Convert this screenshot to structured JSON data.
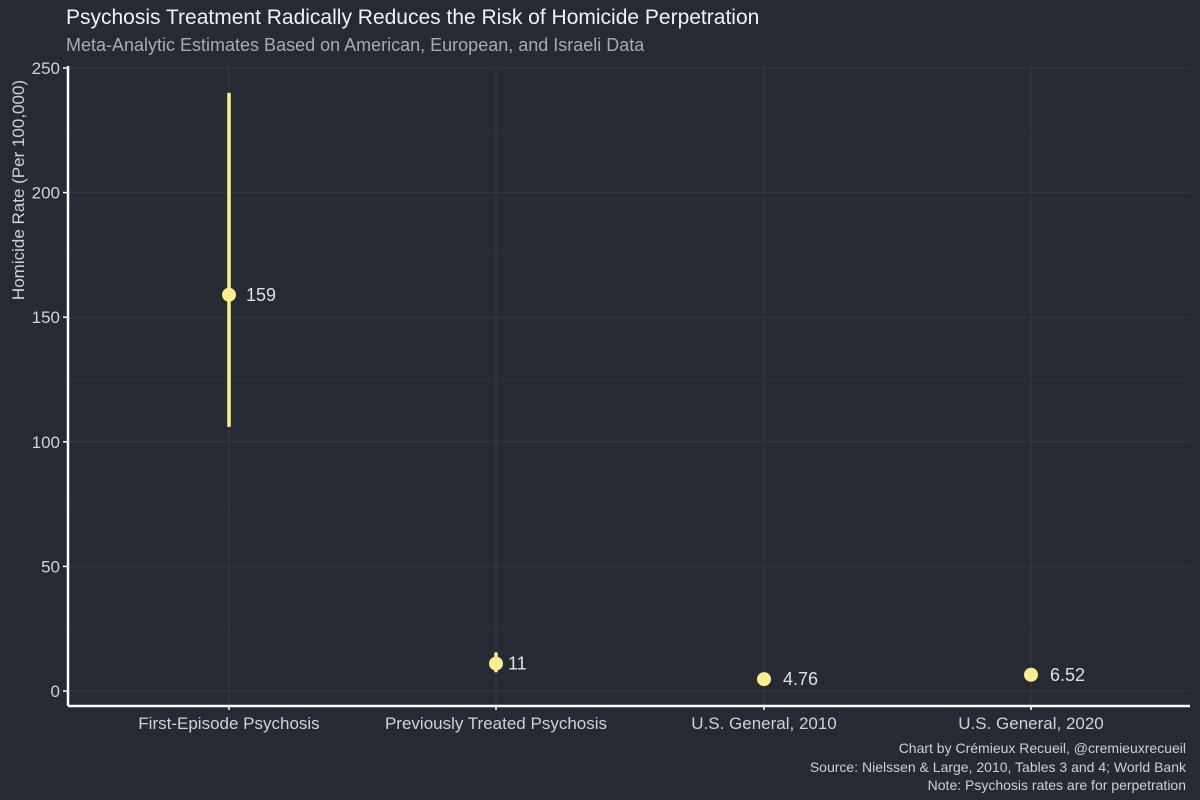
{
  "chart_data": {
    "type": "pointrange",
    "title": "Psychosis Treatment Radically Reduces the Risk of Homicide Perpetration",
    "subtitle": "Meta-Analytic Estimates Based on American, European, and Israeli Data",
    "xlabel": "",
    "ylabel": "Homicide Rate (Per 100,000)",
    "ylim": [
      0,
      250
    ],
    "yticks": [
      0,
      50,
      100,
      150,
      200,
      250
    ],
    "categories": [
      "First-Episode Psychosis",
      "Previously Treated Psychosis",
      "U.S. General, 2010",
      "U.S. General, 2020"
    ],
    "values": [
      159,
      11,
      4.76,
      6.52
    ],
    "value_labels": [
      "159",
      "11",
      "4.76",
      "6.52"
    ],
    "lower": [
      106,
      7.5,
      null,
      null
    ],
    "upper": [
      240,
      15.5,
      null,
      null
    ],
    "grid": true,
    "legend": "none",
    "caption": [
      "Chart by Crémieux Recueil, @cremieuxrecueil",
      "Source: Nielssen & Large, 2010, Tables 3 and 4; World Bank",
      "Note: Psychosis rates are for perpetration"
    ]
  },
  "colors": {
    "background": "#252a33",
    "point": "#fcee8f",
    "axis": "#ffffff",
    "grid": "#343943"
  }
}
